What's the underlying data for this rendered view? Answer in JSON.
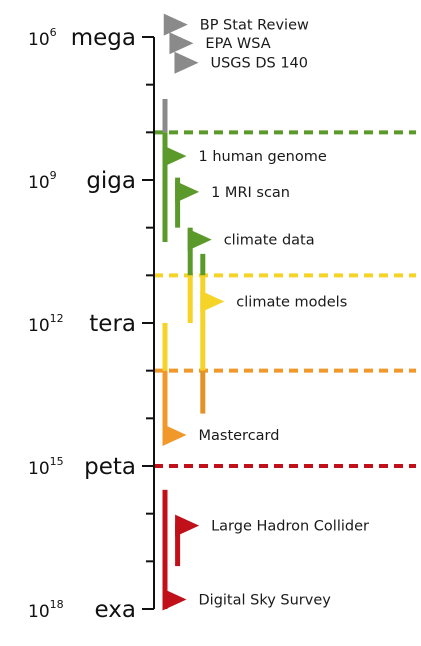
{
  "chart_data": {
    "type": "timeline",
    "y_axis": {
      "scale": "log10",
      "range": [
        6,
        18
      ],
      "direction": "downward",
      "major_ticks": [
        {
          "exp": 6,
          "base": "10",
          "sup": "6",
          "prefix": "mega"
        },
        {
          "exp": 9,
          "base": "10",
          "sup": "9",
          "prefix": "giga"
        },
        {
          "exp": 12,
          "base": "10",
          "sup": "12",
          "prefix": "tera"
        },
        {
          "exp": 15,
          "base": "10",
          "sup": "15",
          "prefix": "peta"
        },
        {
          "exp": 18,
          "base": "10",
          "sup": "18",
          "prefix": "exa"
        }
      ],
      "minor_ticks": [
        7,
        8,
        10,
        11,
        13,
        14,
        16,
        17
      ]
    },
    "threshold_lines": [
      {
        "exp": 8.0,
        "color": "#5b9a2a"
      },
      {
        "exp": 11.0,
        "color": "#f5d327"
      },
      {
        "exp": 13.0,
        "color": "#f0982a"
      },
      {
        "exp": 15.0,
        "color": "#c0101a"
      }
    ],
    "colors": {
      "gray": "#8a8a8a",
      "green": "#5b9a2a",
      "yellow": "#f5d327",
      "orange": "#f0982a",
      "orange_dark": "#e39226",
      "red": "#c0101a"
    },
    "bars": [
      {
        "lane": 0,
        "from": 7.3,
        "to": 8.0,
        "color": "#8a8a8a"
      },
      {
        "lane": 0,
        "from": 8.0,
        "to": 10.3,
        "color": "#5b9a2a"
      },
      {
        "lane": 1,
        "from": 8.95,
        "to": 10.0,
        "color": "#5b9a2a"
      },
      {
        "lane": 2,
        "from": 10.0,
        "to": 11.0,
        "color": "#5b9a2a"
      },
      {
        "lane": 2,
        "from": 11.0,
        "to": 12.0,
        "color": "#f5d327"
      },
      {
        "lane": 3,
        "from": 10.55,
        "to": 11.0,
        "color": "#5b9a2a"
      },
      {
        "lane": 3,
        "from": 11.0,
        "to": 13.0,
        "color": "#f5d327"
      },
      {
        "lane": 3,
        "from": 13.0,
        "to": 13.9,
        "color": "#e39226"
      },
      {
        "lane": 0,
        "from": 12.0,
        "to": 13.0,
        "color": "#f5d327"
      },
      {
        "lane": 0,
        "from": 13.0,
        "to": 14.4,
        "color": "#f0982a"
      },
      {
        "lane": 0,
        "from": 15.5,
        "to": 18.0,
        "color": "#c0101a"
      },
      {
        "lane": 1,
        "from": 16.2,
        "to": 17.1,
        "color": "#c0101a"
      }
    ],
    "flags": [
      {
        "label": "BP Stat Review",
        "lane": 0.1,
        "exp": 5.74,
        "color": "#8a8a8a"
      },
      {
        "label": "EPA WSA",
        "lane": 0.55,
        "exp": 6.13,
        "color": "#8a8a8a"
      },
      {
        "label": "USGS DS 140",
        "lane": 0.95,
        "exp": 6.54,
        "color": "#8a8a8a"
      },
      {
        "label": "1 human genome",
        "lane": 0,
        "exp": 8.5,
        "color": "#5b9a2a"
      },
      {
        "label": "1 MRI scan",
        "lane": 1,
        "exp": 9.25,
        "color": "#5b9a2a"
      },
      {
        "label": "climate data",
        "lane": 2,
        "exp": 10.25,
        "color": "#5b9a2a"
      },
      {
        "label": "climate models",
        "lane": 3,
        "exp": 11.55,
        "color": "#f5d327"
      },
      {
        "label": "Mastercard",
        "lane": 0,
        "exp": 14.35,
        "color": "#f0982a"
      },
      {
        "label": "Large Hadron Collider",
        "lane": 1,
        "exp": 16.25,
        "color": "#c0101a"
      },
      {
        "label": "Digital Sky Survey",
        "lane": 0,
        "exp": 17.8,
        "color": "#c0101a"
      }
    ]
  }
}
